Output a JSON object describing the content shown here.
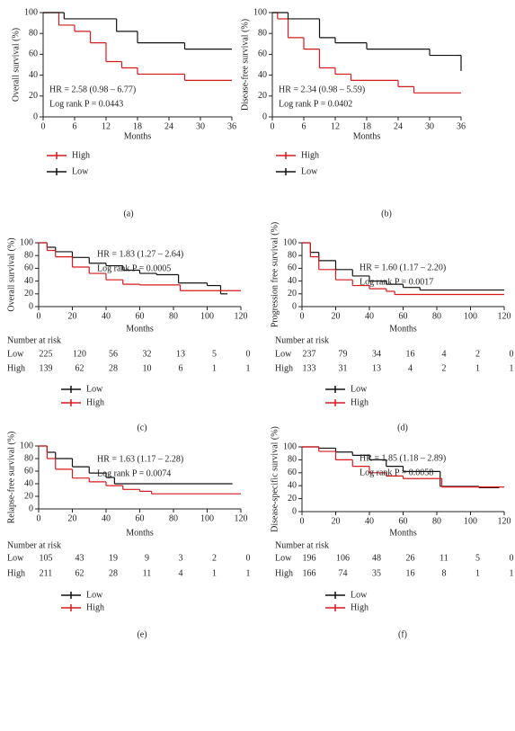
{
  "chart_data": [
    {
      "type": "step",
      "xlabel": "Months",
      "ylabel": "Overall survival (%)",
      "xlim": [
        0,
        36
      ],
      "ylim": [
        0,
        100
      ],
      "xticks": [
        0,
        6,
        12,
        18,
        24,
        30,
        36
      ],
      "yticks": [
        0,
        20,
        40,
        60,
        80,
        100
      ],
      "annotations": [
        "HR = 2.58 (0.98 – 6.77)",
        "Log rank P = 0.0443"
      ],
      "panel_label": "(a)",
      "series": [
        {
          "name": "High",
          "color": "#d7191c",
          "x": [
            0,
            3,
            6,
            9,
            12,
            15,
            18,
            27,
            36
          ],
          "values": [
            100,
            88,
            82,
            71,
            53,
            47,
            41,
            35,
            35
          ]
        },
        {
          "name": "Low",
          "color": "#111111",
          "x": [
            0,
            4,
            14,
            18,
            27,
            36
          ],
          "values": [
            100,
            94,
            82,
            71,
            65,
            65
          ]
        }
      ]
    },
    {
      "type": "step",
      "xlabel": "Months",
      "ylabel": "Disease-free survival (%)",
      "xlim": [
        0,
        36
      ],
      "ylim": [
        0,
        100
      ],
      "xticks": [
        0,
        6,
        12,
        18,
        24,
        30,
        36
      ],
      "yticks": [
        0,
        20,
        40,
        60,
        80,
        100
      ],
      "annotations": [
        "HR = 2.34 (0.98 – 5.59)",
        "Log rank P = 0.0402"
      ],
      "panel_label": "(b)",
      "series": [
        {
          "name": "High",
          "color": "#d7191c",
          "x": [
            0,
            1,
            3,
            6,
            9,
            12,
            15,
            24,
            27,
            36
          ],
          "values": [
            100,
            94,
            76,
            65,
            47,
            41,
            35,
            29,
            23,
            23
          ]
        },
        {
          "name": "Low",
          "color": "#111111",
          "x": [
            0,
            3,
            9,
            12,
            18,
            30,
            35,
            36
          ],
          "values": [
            100,
            94,
            76,
            71,
            65,
            59,
            59,
            44
          ]
        }
      ]
    },
    {
      "type": "step",
      "xlabel": "Months",
      "ylabel": "Overall survival (%)",
      "xlim": [
        0,
        120
      ],
      "ylim": [
        0,
        100
      ],
      "xticks": [
        0,
        20,
        40,
        60,
        80,
        100,
        120
      ],
      "yticks": [
        0,
        20,
        40,
        60,
        80,
        100
      ],
      "annotations": [
        "HR = 1.83 (1.27 – 2.64)",
        "Log rank P = 0.0005"
      ],
      "panel_label": "(c)",
      "series": [
        {
          "name": "Low",
          "color": "#111111",
          "x": [
            0,
            5,
            10,
            20,
            30,
            40,
            50,
            60,
            70,
            83,
            100,
            108,
            112
          ],
          "values": [
            100,
            93,
            86,
            77,
            68,
            64,
            57,
            52,
            50,
            37,
            33,
            20,
            20
          ]
        },
        {
          "name": "High",
          "color": "#d7191c",
          "x": [
            0,
            5,
            10,
            20,
            30,
            40,
            50,
            60,
            84,
            120
          ],
          "values": [
            100,
            88,
            78,
            62,
            52,
            42,
            35,
            34,
            25,
            25
          ]
        }
      ],
      "risk_table": {
        "title": "Number at risk",
        "rows": [
          {
            "name": "Low",
            "values": [
              225,
              120,
              56,
              32,
              13,
              5,
              0
            ]
          },
          {
            "name": "High",
            "values": [
              139,
              62,
              28,
              10,
              6,
              1,
              1
            ]
          }
        ]
      }
    },
    {
      "type": "step",
      "xlabel": "Months",
      "ylabel": "Progression free survival (%)",
      "xlim": [
        0,
        120
      ],
      "ylim": [
        0,
        100
      ],
      "xticks": [
        0,
        20,
        40,
        60,
        80,
        100,
        120
      ],
      "yticks": [
        0,
        20,
        40,
        60,
        80,
        100
      ],
      "annotations": [
        "HR = 1.60 (1.17 – 2.20)",
        "Log rank P = 0.0017"
      ],
      "panel_label": "(d)",
      "series": [
        {
          "name": "Low",
          "color": "#111111",
          "x": [
            0,
            5,
            10,
            20,
            30,
            40,
            50,
            60,
            70,
            120
          ],
          "values": [
            100,
            85,
            72,
            58,
            48,
            40,
            35,
            30,
            26,
            26
          ]
        },
        {
          "name": "High",
          "color": "#d7191c",
          "x": [
            0,
            5,
            10,
            20,
            30,
            40,
            50,
            55,
            120
          ],
          "values": [
            100,
            78,
            58,
            42,
            33,
            28,
            24,
            19,
            19
          ]
        }
      ],
      "risk_table": {
        "title": "Number at risk",
        "rows": [
          {
            "name": "Low",
            "values": [
              237,
              79,
              34,
              16,
              4,
              2,
              0
            ]
          },
          {
            "name": "High",
            "values": [
              133,
              31,
              13,
              4,
              2,
              1,
              1
            ]
          }
        ]
      }
    },
    {
      "type": "step",
      "xlabel": "Months",
      "ylabel": "Relapse-free survival (%)",
      "xlim": [
        0,
        120
      ],
      "ylim": [
        0,
        100
      ],
      "xticks": [
        0,
        20,
        40,
        60,
        80,
        100,
        120
      ],
      "yticks": [
        0,
        20,
        40,
        60,
        80,
        100
      ],
      "annotations": [
        "HR = 1.63 (1.17 – 2.28)",
        "Log rank P = 0.0074"
      ],
      "panel_label": "(e)",
      "series": [
        {
          "name": "Low",
          "color": "#111111",
          "x": [
            0,
            5,
            10,
            20,
            30,
            40,
            45,
            115
          ],
          "values": [
            100,
            90,
            80,
            67,
            57,
            50,
            40,
            40
          ]
        },
        {
          "name": "High",
          "color": "#d7191c",
          "x": [
            0,
            5,
            10,
            20,
            30,
            40,
            50,
            60,
            67,
            120
          ],
          "values": [
            100,
            80,
            63,
            49,
            43,
            37,
            31,
            28,
            24,
            24
          ]
        }
      ],
      "risk_table": {
        "title": "Number at risk",
        "rows": [
          {
            "name": "Low",
            "values": [
              105,
              43,
              19,
              9,
              3,
              2,
              0
            ]
          },
          {
            "name": "High",
            "values": [
              211,
              62,
              28,
              11,
              4,
              1,
              1
            ]
          }
        ]
      }
    },
    {
      "type": "step",
      "xlabel": "Months",
      "ylabel": "Disease-specific survival (%)",
      "xlim": [
        0,
        120
      ],
      "ylim": [
        0,
        100
      ],
      "xticks": [
        0,
        20,
        40,
        60,
        80,
        100,
        120
      ],
      "yticks": [
        0,
        20,
        40,
        60,
        80,
        100
      ],
      "annotations": [
        "HR = 1.85 (1.18 – 2.89)",
        "Log rank P = 0.0058"
      ],
      "panel_label": "(f)",
      "series": [
        {
          "name": "Low",
          "color": "#111111",
          "x": [
            0,
            10,
            20,
            30,
            40,
            50,
            60,
            82,
            105,
            117
          ],
          "values": [
            100,
            98,
            92,
            87,
            80,
            70,
            62,
            39,
            37,
            37
          ]
        },
        {
          "name": "High",
          "color": "#d7191c",
          "x": [
            0,
            10,
            20,
            30,
            40,
            50,
            60,
            83,
            120
          ],
          "values": [
            100,
            93,
            80,
            70,
            60,
            55,
            51,
            38,
            38
          ]
        }
      ],
      "risk_table": {
        "title": "Number at risk",
        "rows": [
          {
            "name": "Low",
            "values": [
              196,
              106,
              48,
              26,
              11,
              5,
              0
            ]
          },
          {
            "name": "High",
            "values": [
              166,
              74,
              35,
              16,
              8,
              1,
              1
            ]
          }
        ]
      }
    }
  ]
}
